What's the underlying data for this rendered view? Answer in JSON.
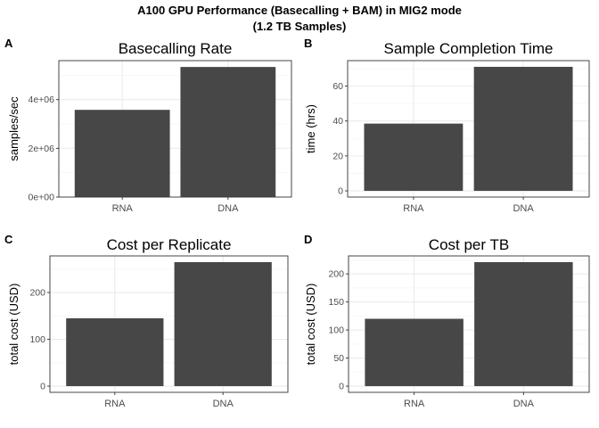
{
  "figure": {
    "title_line1": "A100 GPU Performance (Basecalling + BAM) in MIG2 mode",
    "title_line2": "(1.2 TB Samples)"
  },
  "colors": {
    "bar": "#474747",
    "grid_major": "#ebebeb",
    "grid_minor": "#f5f5f5",
    "panel_border": "#333333",
    "tick_text": "#4d4d4d"
  },
  "chart_data": [
    {
      "tag": "A",
      "type": "bar",
      "title": "Basecalling Rate",
      "xlabel": "",
      "ylabel": "samples/sec",
      "categories": [
        "RNA",
        "DNA"
      ],
      "values": [
        3580000,
        5340000
      ],
      "ylim": [
        0,
        5600000
      ],
      "yticks": [
        0,
        2000000,
        4000000
      ],
      "ytick_labels": [
        "0e+00",
        "2e+06",
        "4e+06"
      ],
      "grid": true,
      "legend": "none"
    },
    {
      "tag": "B",
      "type": "bar",
      "title": "Sample Completion Time",
      "xlabel": "",
      "ylabel": "time (hrs)",
      "categories": [
        "RNA",
        "DNA"
      ],
      "values": [
        38.5,
        71
      ],
      "ylim": [
        -3.55,
        74.55
      ],
      "yticks": [
        0,
        20,
        40,
        60
      ],
      "ytick_labels": [
        "0",
        "20",
        "40",
        "60"
      ],
      "grid": true,
      "legend": "none"
    },
    {
      "tag": "C",
      "type": "bar",
      "title": "Cost per Replicate",
      "xlabel": "",
      "ylabel": "total cost (USD)",
      "categories": [
        "RNA",
        "DNA"
      ],
      "values": [
        145,
        265
      ],
      "ylim": [
        -13.25,
        278.25
      ],
      "yticks": [
        0,
        100,
        200
      ],
      "ytick_labels": [
        "0",
        "100",
        "200"
      ],
      "grid": true,
      "legend": "none"
    },
    {
      "tag": "D",
      "type": "bar",
      "title": "Cost per TB",
      "xlabel": "",
      "ylabel": "total cost (USD)",
      "categories": [
        "RNA",
        "DNA"
      ],
      "values": [
        120,
        221
      ],
      "ylim": [
        -11.05,
        232.05
      ],
      "yticks": [
        0,
        50,
        100,
        150,
        200
      ],
      "ytick_labels": [
        "0",
        "50",
        "100",
        "150",
        "200"
      ],
      "grid": true,
      "legend": "none"
    }
  ]
}
